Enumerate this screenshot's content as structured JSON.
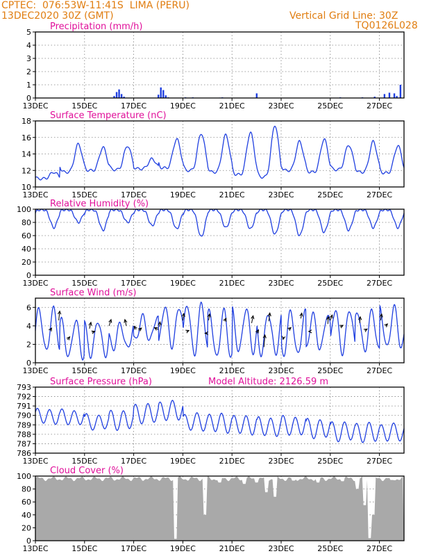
{
  "header": {
    "line1_left": "CPTEC:  076:53W-11:41S  LIMA (PERU)",
    "line2_left": "13DEC2020 30Z (GMT)",
    "line1_right": "Vertical Grid Line: 30Z",
    "line2_right": "TQ0126L028",
    "model_altitude": "Model Altitude: 2126.59 m"
  },
  "colors": {
    "header": "#e07d10",
    "title": "#e0109a",
    "series": "#1f3fe0",
    "cloud": "#a9a9a9",
    "grid": "#808080"
  },
  "x_tick_labels": [
    "13DEC",
    "15DEC",
    "17DEC",
    "19DEC",
    "21DEC",
    "23DEC",
    "25DEC",
    "27DEC"
  ],
  "chart_data": [
    {
      "type": "bar",
      "title": "Precipitation (mm/h)",
      "ylim": [
        0,
        5
      ],
      "yticks": [
        0,
        1,
        2,
        3,
        4,
        5
      ],
      "x_days": [
        3.2,
        3.3,
        3.4,
        3.5,
        3.6,
        5.0,
        5.1,
        5.2,
        5.3,
        5.4,
        6.1,
        6.4,
        7.5,
        7.6,
        9.0,
        12.4,
        13.3,
        13.8,
        14.2,
        14.4,
        14.6,
        14.7,
        14.85
      ],
      "values": [
        0.15,
        0.45,
        0.65,
        0.3,
        0.1,
        0.25,
        0.8,
        0.6,
        0.2,
        0.05,
        0.05,
        0.05,
        0.03,
        0.05,
        0.35,
        0.05,
        0.05,
        0.1,
        0.3,
        0.4,
        0.35,
        0.15,
        1.0
      ]
    },
    {
      "type": "line",
      "title": "Surface Temperature (nC)",
      "ylim": [
        10,
        18
      ],
      "yticks": [
        10,
        12,
        14,
        16,
        18
      ],
      "daily_max": [
        11.8,
        15.2,
        14.8,
        15.0,
        13.4,
        15.8,
        16.5,
        16.3,
        16.6,
        17.5,
        15.5,
        15.8,
        15.1,
        15.5,
        15.0,
        15.3,
        13.8,
        15.5
      ],
      "daily_min": [
        11.0,
        11.8,
        12.0,
        12.1,
        12.2,
        12.3,
        12.0,
        11.8,
        11.5,
        11.2,
        12.0,
        11.8,
        12.1,
        11.8,
        11.7,
        11.5,
        11.9,
        12.0
      ]
    },
    {
      "type": "line",
      "title": "Relative Humidity (%)",
      "ylim": [
        0,
        100
      ],
      "yticks": [
        0,
        20,
        40,
        60,
        80,
        100
      ],
      "daily_min": [
        72,
        80,
        68,
        80,
        75,
        70,
        58,
        72,
        70,
        62,
        60,
        65,
        68,
        72,
        72,
        70,
        78,
        72
      ]
    },
    {
      "type": "line",
      "title": "Surface Wind (m/s)",
      "ylim": [
        0,
        7
      ],
      "yticks": [
        0,
        2,
        4,
        6
      ],
      "daily_max": [
        5.8,
        4.6,
        4.6,
        4.2,
        5.0,
        6.1,
        6.4,
        5.6,
        5.9,
        5.4,
        5.5,
        5.2,
        5.8,
        5.6,
        6.0,
        5.5,
        5.8,
        6.1
      ],
      "daily_min": [
        1.2,
        0.6,
        0.8,
        1.5,
        2.4,
        1.8,
        0.9,
        0.5,
        1.2,
        1.0,
        0.8,
        1.4,
        1.1,
        1.3,
        1.6,
        1.2,
        1.5,
        1.3
      ],
      "vectors": [
        {
          "x": 0.6,
          "y": 3.5,
          "dx": 0.3,
          "dy": 0.5
        },
        {
          "x": 0.95,
          "y": 4.6,
          "dx": 0.2,
          "dy": 1.9
        },
        {
          "x": 1.3,
          "y": 2.5,
          "dx": 0.5,
          "dy": 0.6
        },
        {
          "x": 2.2,
          "y": 3.7,
          "dx": 0.3,
          "dy": 1.3
        },
        {
          "x": 2.3,
          "y": 3.3,
          "dx": 0.6,
          "dy": 0.2
        },
        {
          "x": 3.0,
          "y": 4.0,
          "dx": 0.4,
          "dy": 1.3
        },
        {
          "x": 3.7,
          "y": 4.0,
          "dx": -0.3,
          "dy": 1.3
        },
        {
          "x": 4.1,
          "y": 3.6,
          "dx": -0.4,
          "dy": 0.7
        },
        {
          "x": 4.2,
          "y": 3.5,
          "dx": 0.6,
          "dy": 0.5
        },
        {
          "x": 5.0,
          "y": 3.6,
          "dx": -0.8,
          "dy": 0.4
        },
        {
          "x": 5.05,
          "y": 3.9,
          "dx": 0.1,
          "dy": 1.0
        },
        {
          "x": 6.0,
          "y": 4.6,
          "dx": 0.2,
          "dy": 1.4
        },
        {
          "x": 6.15,
          "y": 3.4,
          "dx": 0.5,
          "dy": 0.2
        },
        {
          "x": 7.0,
          "y": 3.2,
          "dx": -0.5,
          "dy": 0.0
        },
        {
          "x": 7.05,
          "y": 4.6,
          "dx": 0.2,
          "dy": 1.3
        },
        {
          "x": 7.7,
          "y": 4.5,
          "dx": 0.3,
          "dy": 0.6
        },
        {
          "x": 8.8,
          "y": 4.3,
          "dx": 0.3,
          "dy": 1.5
        },
        {
          "x": 9.0,
          "y": 3.2,
          "dx": 0.4,
          "dy": 0.7
        },
        {
          "x": 9.3,
          "y": 1.7,
          "dx": 0.2,
          "dy": 2.5
        },
        {
          "x": 9.5,
          "y": 4.5,
          "dx": 0.2,
          "dy": 1.7
        },
        {
          "x": 10.1,
          "y": 2.8,
          "dx": -0.1,
          "dy": -0.5
        },
        {
          "x": 10.3,
          "y": 3.6,
          "dx": 0.5,
          "dy": 0.4
        },
        {
          "x": 10.8,
          "y": 4.8,
          "dx": 0.2,
          "dy": 1.1
        },
        {
          "x": 11.2,
          "y": 3.4,
          "dx": -0.4,
          "dy": 0.0
        },
        {
          "x": 11.9,
          "y": 4.2,
          "dx": 0.1,
          "dy": 1.5
        },
        {
          "x": 12.0,
          "y": 4.6,
          "dx": 0.4,
          "dy": 1.1
        },
        {
          "x": 12.4,
          "y": 3.9,
          "dx": 0.6,
          "dy": 0.3
        },
        {
          "x": 13.2,
          "y": 4.3,
          "dx": 0.1,
          "dy": 1.3
        },
        {
          "x": 13.4,
          "y": 3.5,
          "dx": 0.5,
          "dy": 0.3
        },
        {
          "x": 14.05,
          "y": 4.6,
          "dx": 0.2,
          "dy": 1.3
        },
        {
          "x": 14.25,
          "y": 4.0,
          "dx": 0.4,
          "dy": 0.4
        }
      ]
    },
    {
      "type": "line",
      "title": "Surface Pressure (hPa)",
      "ylim": [
        786,
        793
      ],
      "yticks": [
        786,
        787,
        788,
        789,
        790,
        791,
        792,
        793
      ],
      "daily_mean": [
        789.9,
        789.8,
        789.3,
        789.5,
        790.2,
        790.5,
        789.3,
        789.2,
        789.0,
        788.8,
        788.9,
        788.6,
        788.3,
        788.2,
        788.2,
        788.1,
        788.0,
        788.0
      ],
      "daily_amplitude": [
        0.8,
        0.8,
        0.8,
        1.0,
        1.0,
        1.0,
        0.9,
        1.0,
        1.0,
        1.0,
        1.0,
        1.0,
        1.0,
        1.0,
        0.9,
        0.9,
        0.9,
        0.9
      ]
    },
    {
      "type": "area",
      "title": "Cloud Cover (%)",
      "ylim": [
        0,
        100
      ],
      "yticks": [
        0,
        20,
        40,
        60,
        80,
        100
      ],
      "typical": 96,
      "dips": [
        {
          "x": 5.7,
          "y": 3
        },
        {
          "x": 6.9,
          "y": 40
        },
        {
          "x": 7.5,
          "y": 90
        },
        {
          "x": 8.5,
          "y": 88
        },
        {
          "x": 9.0,
          "y": 90
        },
        {
          "x": 9.4,
          "y": 75
        },
        {
          "x": 9.75,
          "y": 68
        },
        {
          "x": 10.5,
          "y": 93
        },
        {
          "x": 11.5,
          "y": 90
        },
        {
          "x": 12.5,
          "y": 92
        },
        {
          "x": 13.1,
          "y": 80
        },
        {
          "x": 13.4,
          "y": 55
        },
        {
          "x": 13.6,
          "y": 4
        },
        {
          "x": 13.75,
          "y": 40
        },
        {
          "x": 14.5,
          "y": 94
        }
      ]
    }
  ]
}
